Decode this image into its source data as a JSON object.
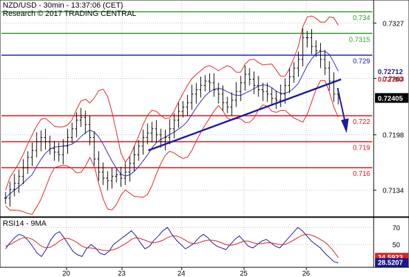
{
  "header": {
    "line1": "NZD/USD - 30min - 13:37:06 (CET)",
    "line2": "Research © 2017 TRADING CENTRAL"
  },
  "colors": {
    "resistance": "#2e9e2e",
    "pivot": "#1a1aa0",
    "support": "#dd1111",
    "bands": "#dd2222",
    "ma": "#2a2ab0",
    "candles": "#000000",
    "rsi": "#1a1a8c",
    "rsi_ma": "#cc2222",
    "arrow": "#1a1aa0",
    "badge_red": "#e02020",
    "badge_blue": "#1a1a8c"
  },
  "chart_data": [
    {
      "type": "line",
      "title": "NZD/USD - 30min - 13:37:06 (CET)",
      "ylim": [
        0.7105,
        0.7352
      ],
      "y_ticks": [
        "0.7327",
        "0.7263",
        "0.7198",
        "0.7134"
      ],
      "y_tick_values": [
        0.7327,
        0.7263,
        0.7198,
        0.7134
      ],
      "x_ticks": [
        "20",
        "23",
        "24",
        "25",
        "26"
      ],
      "levels": [
        {
          "label": "0.734",
          "value": 0.734,
          "kind": "resistance"
        },
        {
          "label": "0.7315",
          "value": 0.7315,
          "kind": "resistance"
        },
        {
          "label": "0.729",
          "value": 0.729,
          "kind": "pivot"
        },
        {
          "label": "0.722",
          "value": 0.722,
          "kind": "support"
        },
        {
          "label": "0.719",
          "value": 0.719,
          "kind": "support"
        },
        {
          "label": "0.716",
          "value": 0.716,
          "kind": "support"
        }
      ],
      "price_badges": [
        {
          "label": "0.72712",
          "value": 0.72712,
          "color": "blue"
        },
        {
          "label": "0.72700",
          "value": 0.727,
          "color": "red"
        },
        {
          "label": "0.72405",
          "value": 0.72405,
          "color": "black"
        }
      ],
      "close_series": [
        0.7125,
        0.7135,
        0.7142,
        0.715,
        0.716,
        0.7172,
        0.718,
        0.719,
        0.7195,
        0.719,
        0.7182,
        0.7178,
        0.7175,
        0.7185,
        0.7195,
        0.7205,
        0.7215,
        0.7218,
        0.721,
        0.7195,
        0.717,
        0.7155,
        0.7148,
        0.7145,
        0.715,
        0.7152,
        0.7148,
        0.7155,
        0.7165,
        0.7175,
        0.7185,
        0.7195,
        0.72,
        0.7205,
        0.7198,
        0.719,
        0.7195,
        0.7205,
        0.7215,
        0.7225,
        0.723,
        0.7235,
        0.7245,
        0.725,
        0.7255,
        0.726,
        0.7258,
        0.725,
        0.7245,
        0.7235,
        0.723,
        0.7238,
        0.7248,
        0.7258,
        0.7268,
        0.7262,
        0.7255,
        0.725,
        0.7248,
        0.7245,
        0.724,
        0.7238,
        0.7245,
        0.7255,
        0.7265,
        0.7275,
        0.7285,
        0.731,
        0.731,
        0.73,
        0.7295,
        0.7285,
        0.7275,
        0.726,
        0.7245,
        0.724
      ]
    },
    {
      "type": "line",
      "title": "RSI14 - 9MA",
      "ylim": [
        25,
        80
      ],
      "y_ticks": [
        "70",
        "50"
      ],
      "y_tick_values": [
        70,
        50
      ],
      "badges": [
        {
          "label": "34.5923",
          "value": 34.5923,
          "color": "red"
        },
        {
          "label": "28.5207",
          "value": 28.5207,
          "color": "blue"
        }
      ],
      "series": [
        {
          "name": "RSI14",
          "values": [
            45,
            52,
            58,
            62,
            60,
            55,
            48,
            40,
            36,
            44,
            55,
            62,
            65,
            58,
            50,
            42,
            38,
            36,
            45,
            50,
            46,
            40,
            38,
            42,
            50,
            54,
            58,
            62,
            66,
            60,
            52,
            45,
            48,
            55,
            60,
            66,
            70,
            62,
            55,
            50,
            45,
            48,
            52,
            58,
            62,
            58,
            52,
            48,
            46,
            44,
            50,
            56,
            60,
            54,
            48,
            46,
            50,
            54,
            56,
            52,
            48,
            46,
            52,
            58,
            64,
            70,
            66,
            60,
            54,
            50,
            46,
            40,
            35,
            30,
            28.5207
          ]
        },
        {
          "name": "9MA",
          "values": [
            48,
            50,
            53,
            56,
            58,
            58,
            56,
            52,
            48,
            46,
            47,
            50,
            54,
            57,
            57,
            55,
            52,
            48,
            46,
            46,
            45,
            44,
            43,
            43,
            44,
            46,
            49,
            52,
            56,
            58,
            57,
            55,
            53,
            52,
            53,
            55,
            58,
            60,
            60,
            58,
            55,
            52,
            51,
            52,
            54,
            55,
            55,
            54,
            52,
            50,
            49,
            50,
            52,
            54,
            54,
            52,
            51,
            51,
            52,
            52,
            51,
            50,
            50,
            52,
            55,
            58,
            61,
            62,
            61,
            59,
            56,
            53,
            48,
            42,
            34.5923
          ]
        }
      ]
    }
  ]
}
